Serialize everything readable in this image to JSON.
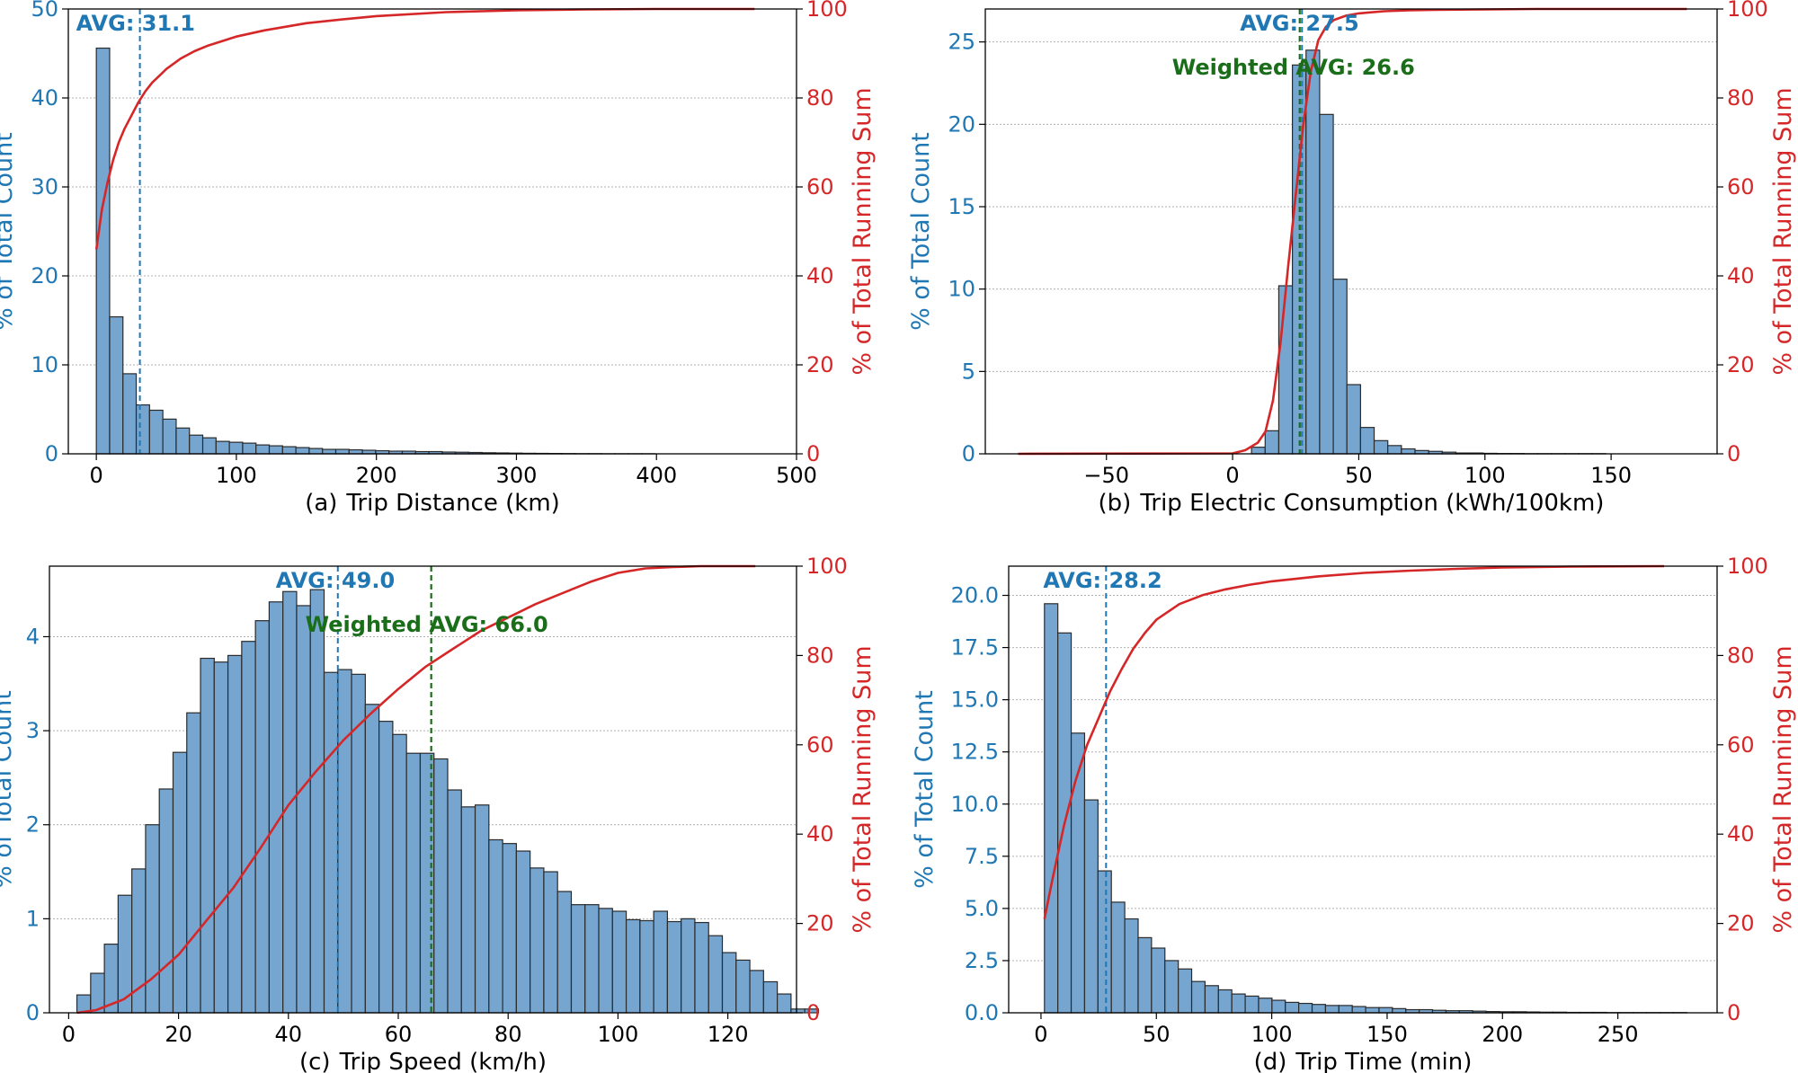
{
  "colors": {
    "bar_fill": "#76a5cf",
    "bar_edge": "#2b2b2b",
    "left_axis": "#1f77b4",
    "right_axis": "#d62728",
    "cumulative_line": "#d62728",
    "avg_line": "#1f77b4",
    "weighted_avg_line": "#1a6e1a",
    "grid": "#b0b0b0"
  },
  "chart_data": [
    {
      "type": "bar",
      "id": "a",
      "caption_prefix": "(a)",
      "xlabel": "Trip Distance (km)",
      "ylabel_left": "% of Total Count",
      "ylabel_right": "% of Total Running Sum",
      "xlim": [
        -20,
        500
      ],
      "xticks": [
        0,
        100,
        200,
        300,
        400,
        500
      ],
      "xtick_labels": [
        "0",
        "100",
        "200",
        "300",
        "400",
        "500"
      ],
      "ylim_left": [
        0,
        50
      ],
      "yticks_left": [
        0,
        10,
        20,
        30,
        40,
        50
      ],
      "ytick_labels_left": [
        "0",
        "10",
        "20",
        "30",
        "40",
        "50"
      ],
      "ylim_right": [
        0,
        100
      ],
      "yticks_right": [
        0,
        20,
        40,
        60,
        80,
        100
      ],
      "ytick_labels_right": [
        "0",
        "20",
        "40",
        "60",
        "80",
        "100"
      ],
      "grid": "y",
      "bin_start": 0,
      "bin_width": 9.5,
      "bar_values": [
        45.6,
        15.4,
        9.0,
        5.5,
        4.9,
        3.9,
        2.9,
        2.1,
        1.8,
        1.4,
        1.3,
        1.2,
        1.0,
        0.9,
        0.8,
        0.7,
        0.6,
        0.5,
        0.5,
        0.45,
        0.4,
        0.35,
        0.3,
        0.3,
        0.25,
        0.25,
        0.2,
        0.18,
        0.15,
        0.12,
        0.1,
        0.08,
        0.06,
        0.05,
        0.04,
        0.03,
        0.02,
        0.02,
        0.01,
        0.01,
        0.01,
        0.01
      ],
      "cumulative": {
        "x": [
          0,
          4,
          8,
          12,
          16,
          20,
          25,
          30,
          35,
          40,
          45,
          50,
          60,
          70,
          80,
          100,
          120,
          150,
          180,
          200,
          250,
          300,
          350,
          400,
          470
        ],
        "y": [
          46,
          55,
          61,
          66,
          70,
          73,
          76,
          79,
          81.5,
          83.5,
          85,
          86.5,
          88.8,
          90.5,
          91.8,
          93.8,
          95.2,
          96.8,
          97.8,
          98.4,
          99.3,
          99.7,
          99.9,
          100,
          100
        ]
      },
      "avg": {
        "value": 31.1,
        "label": "AVG: 31.1"
      },
      "weighted_avg": null
    },
    {
      "type": "bar",
      "id": "b",
      "caption_prefix": "(b)",
      "xlabel": "Trip Electric Consumption (kWh/100km)",
      "ylabel_left": "% of Total Count",
      "ylabel_right": "% of Total Running Sum",
      "xlim": [
        -98,
        192
      ],
      "xticks": [
        -50,
        0,
        50,
        100,
        150
      ],
      "xtick_labels": [
        "−50",
        "0",
        "50",
        "100",
        "150"
      ],
      "ylim_left": [
        0,
        27
      ],
      "yticks_left": [
        0,
        5,
        10,
        15,
        20,
        25
      ],
      "ytick_labels_left": [
        "0",
        "5",
        "10",
        "15",
        "20",
        "25"
      ],
      "ylim_right": [
        0,
        100
      ],
      "yticks_right": [
        0,
        20,
        40,
        60,
        80,
        100
      ],
      "ytick_labels_right": [
        "0",
        "20",
        "40",
        "60",
        "80",
        "100"
      ],
      "grid": "y",
      "bin_start": 7.5,
      "bin_width": 5.4,
      "bar_values": [
        0.4,
        1.4,
        10.2,
        23.6,
        24.5,
        20.6,
        10.6,
        4.2,
        1.6,
        0.8,
        0.5,
        0.3,
        0.2,
        0.15,
        0.1,
        0.05,
        0.05,
        0.03,
        0.02,
        0.02,
        0.01,
        0.01,
        0.01,
        0.01,
        0.01,
        0.01
      ],
      "cumulative": {
        "x": [
          -85,
          0,
          5,
          10,
          13,
          16,
          19,
          22,
          25,
          28,
          31,
          34,
          37,
          40,
          45,
          50,
          60,
          70,
          80,
          100,
          120,
          150,
          180
        ],
        "y": [
          0,
          0.1,
          0.8,
          2.5,
          5,
          12,
          25,
          42,
          58,
          74,
          86,
          93,
          96,
          97.5,
          98.5,
          99,
          99.5,
          99.7,
          99.8,
          99.9,
          100,
          100,
          100
        ]
      },
      "avg": {
        "value": 27.5,
        "label": "AVG: 27.5"
      },
      "weighted_avg": {
        "value": 26.6,
        "label": "Weighted AVG: 26.6"
      }
    },
    {
      "type": "bar",
      "id": "c",
      "caption_prefix": "(c)",
      "xlabel": "Trip Speed (km/h)",
      "ylabel_left": "% of Total Count",
      "ylabel_right": "% of Total Running Sum",
      "xlim": [
        -3.5,
        132.5
      ],
      "xticks": [
        0,
        20,
        40,
        60,
        80,
        100,
        120
      ],
      "xtick_labels": [
        "0",
        "20",
        "40",
        "60",
        "80",
        "100",
        "120"
      ],
      "ylim_left": [
        0,
        4.75
      ],
      "yticks_left": [
        0,
        1,
        2,
        3,
        4
      ],
      "ytick_labels_left": [
        "0",
        "1",
        "2",
        "3",
        "4"
      ],
      "ylim_right": [
        0,
        100
      ],
      "yticks_right": [
        0,
        20,
        40,
        60,
        80,
        100
      ],
      "ytick_labels_right": [
        "0",
        "20",
        "40",
        "60",
        "80",
        "100"
      ],
      "grid": "y",
      "bin_start": 1.5,
      "bin_width": 2.5,
      "bar_values": [
        0.19,
        0.42,
        0.73,
        1.25,
        1.53,
        2.0,
        2.38,
        2.77,
        3.19,
        3.77,
        3.73,
        3.8,
        3.95,
        4.17,
        4.37,
        4.48,
        4.33,
        4.5,
        3.62,
        3.65,
        3.6,
        3.28,
        3.1,
        2.96,
        2.76,
        2.76,
        2.7,
        2.37,
        2.19,
        2.21,
        1.84,
        1.8,
        1.72,
        1.54,
        1.5,
        1.29,
        1.15,
        1.15,
        1.11,
        1.08,
        0.99,
        0.98,
        1.08,
        0.97,
        1.0,
        0.96,
        0.82,
        0.64,
        0.56,
        0.45,
        0.33,
        0.2,
        0.04,
        0.04
      ],
      "cumulative": {
        "x": [
          1.5,
          5,
          10,
          15,
          20,
          25,
          30,
          35,
          40,
          45,
          50,
          55,
          60,
          65,
          70,
          75,
          80,
          85,
          90,
          95,
          100,
          105,
          110,
          115,
          120,
          125
        ],
        "y": [
          0,
          0.6,
          3,
          7.5,
          13,
          20.5,
          28,
          37,
          46.5,
          54,
          61,
          67,
          72.5,
          77.5,
          81.5,
          85.5,
          88.5,
          91.5,
          94,
          96.5,
          98.5,
          99.5,
          99.8,
          100,
          100,
          100
        ]
      },
      "avg": {
        "value": 49.0,
        "label": "AVG: 49.0"
      },
      "weighted_avg": {
        "value": 66.0,
        "label": "Weighted AVG: 66.0"
      }
    },
    {
      "type": "bar",
      "id": "d",
      "caption_prefix": "(d)",
      "xlabel": "Trip Time (min)",
      "ylabel_left": "% of Total Count",
      "ylabel_right": "% of Total Running Sum",
      "xlim": [
        -14,
        293
      ],
      "xticks": [
        0,
        50,
        100,
        150,
        200,
        250
      ],
      "xtick_labels": [
        "0",
        "50",
        "100",
        "150",
        "200",
        "250"
      ],
      "ylim_left": [
        0,
        21.4
      ],
      "yticks_left": [
        0,
        2.5,
        5,
        7.5,
        10,
        12.5,
        15,
        17.5,
        20
      ],
      "ytick_labels_left": [
        "0.0",
        "2.5",
        "5.0",
        "7.5",
        "10.0",
        "12.5",
        "15.0",
        "17.5",
        "20.0"
      ],
      "ylim_right": [
        0,
        100
      ],
      "yticks_right": [
        0,
        20,
        40,
        60,
        80,
        100
      ],
      "ytick_labels_right": [
        "0",
        "20",
        "40",
        "60",
        "80",
        "100"
      ],
      "grid": "y",
      "bin_start": 1.5,
      "bin_width": 5.8,
      "bar_values": [
        19.6,
        18.2,
        13.4,
        10.2,
        6.8,
        5.3,
        4.5,
        3.6,
        3.1,
        2.5,
        2.1,
        1.5,
        1.3,
        1.1,
        0.9,
        0.8,
        0.7,
        0.6,
        0.5,
        0.45,
        0.4,
        0.35,
        0.35,
        0.3,
        0.25,
        0.25,
        0.2,
        0.15,
        0.15,
        0.12,
        0.1,
        0.1,
        0.08,
        0.06,
        0.05,
        0.05,
        0.04,
        0.03,
        0.03,
        0.02,
        0.02,
        0.02,
        0.01,
        0.01,
        0.01,
        0.01,
        0.01,
        0.01
      ],
      "cumulative": {
        "x": [
          1.5,
          5,
          10,
          15,
          20,
          25,
          30,
          35,
          40,
          45,
          50,
          60,
          70,
          80,
          90,
          100,
          120,
          140,
          160,
          180,
          200,
          230,
          270
        ],
        "y": [
          21,
          30,
          42,
          52,
          60,
          66,
          72,
          77,
          81.5,
          85,
          88,
          91.5,
          93.5,
          94.8,
          95.8,
          96.6,
          97.7,
          98.5,
          99,
          99.4,
          99.7,
          99.9,
          100
        ]
      },
      "avg": {
        "value": 28.2,
        "label": "AVG: 28.2"
      },
      "weighted_avg": null
    }
  ]
}
